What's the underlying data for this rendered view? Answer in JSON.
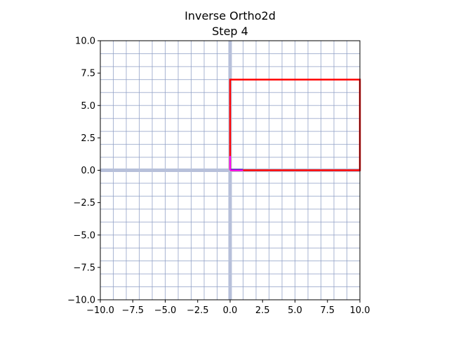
{
  "chart_data": {
    "type": "line",
    "title": "Inverse Ortho2d",
    "subtitle": "Step 4",
    "xlim": [
      -10,
      10
    ],
    "ylim": [
      -10,
      10
    ],
    "xticks": [
      -10,
      -7.5,
      -5,
      -2.5,
      0,
      2.5,
      5,
      7.5,
      10
    ],
    "yticks": [
      -10,
      -7.5,
      -5,
      -2.5,
      0,
      2.5,
      5,
      7.5,
      10
    ],
    "xtick_labels": [
      "−10.0",
      "−7.5",
      "−5.0",
      "−2.5",
      "0.0",
      "2.5",
      "5.0",
      "7.5",
      "10.0"
    ],
    "ytick_labels": [
      "−10.0",
      "−7.5",
      "−5.0",
      "−2.5",
      "0.0",
      "2.5",
      "5.0",
      "7.5",
      "10.0"
    ],
    "grid": true,
    "grid_step": 1,
    "grid_color": "#8e9ec4",
    "axis_color": "#b7c0da",
    "series": [
      {
        "kind": "rectangle-outline",
        "color": "#ff0000",
        "x": [
          0,
          10,
          10,
          0,
          0
        ],
        "y": [
          0,
          0,
          7,
          7,
          0
        ]
      },
      {
        "kind": "basis-x",
        "color": "#1a1aa0",
        "x": [
          0,
          1
        ],
        "y": [
          0.05,
          0.05
        ]
      },
      {
        "kind": "basis-y",
        "color": "#ff00ff",
        "x": [
          0,
          0
        ],
        "y": [
          0,
          1.1
        ]
      },
      {
        "kind": "basis-y-tick",
        "color": "#ff00ff",
        "x": [
          0,
          1
        ],
        "y": [
          0,
          0
        ]
      }
    ]
  }
}
